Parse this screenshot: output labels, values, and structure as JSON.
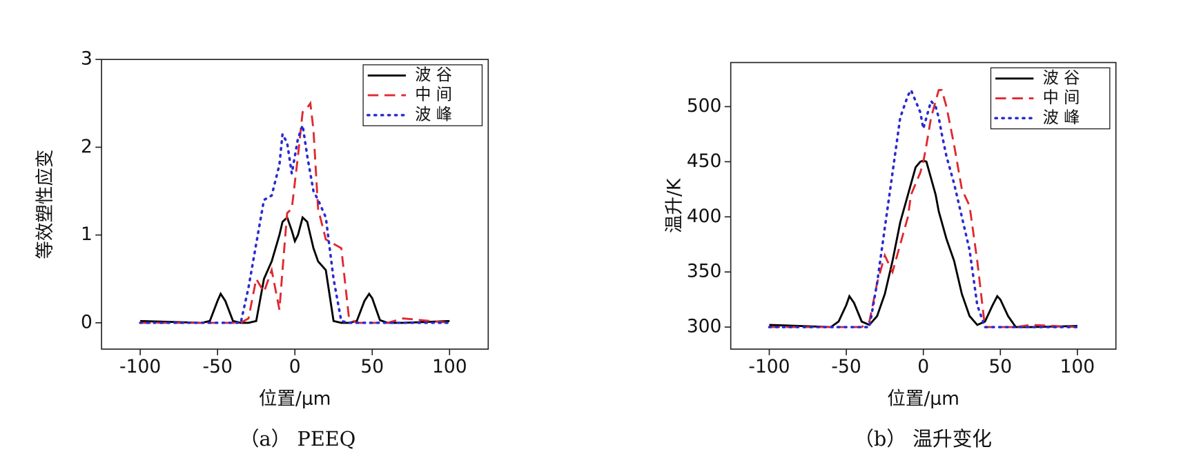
{
  "chart_data": [
    {
      "type": "line",
      "caption": "（a） PEEQ",
      "xlabel": "位置/μm",
      "ylabel": "等效塑性应变",
      "x": [
        -100,
        -60,
        -55,
        -50,
        -48,
        -45,
        -40,
        -35,
        -30,
        -25,
        -20,
        -15,
        -10,
        -8,
        -5,
        -2,
        0,
        2,
        5,
        8,
        10,
        12,
        15,
        20,
        25,
        30,
        35,
        40,
        45,
        48,
        50,
        55,
        60,
        70,
        100
      ],
      "xlim": [
        -125,
        125
      ],
      "xticks": [
        -100,
        -50,
        0,
        50,
        100
      ],
      "ylim": [
        -0.3,
        3
      ],
      "yticks": [
        0,
        1,
        2,
        3
      ],
      "legend": "upper right",
      "series": [
        {
          "name": "波 谷",
          "color": "#000000",
          "dash": "solid",
          "values": [
            0.02,
            0,
            0.02,
            0.25,
            0.33,
            0.25,
            0.02,
            0,
            0,
            0.02,
            0.5,
            0.7,
            1.0,
            1.15,
            1.2,
            1.05,
            0.93,
            1.0,
            1.2,
            1.15,
            1.0,
            0.85,
            0.7,
            0.6,
            0.02,
            0,
            0,
            0.02,
            0.25,
            0.33,
            0.28,
            0.03,
            0,
            0,
            0.02
          ]
        },
        {
          "name": "中 间",
          "color": "#e0282e",
          "dash": "dashed",
          "values": [
            0,
            0,
            0,
            0,
            0,
            0,
            0,
            0,
            0.05,
            0.5,
            0.35,
            0.6,
            0.15,
            0.6,
            1.25,
            1.3,
            1.6,
            1.9,
            2.4,
            2.45,
            2.5,
            2.2,
            1.3,
            0.95,
            0.9,
            0.85,
            0.05,
            0,
            0,
            0,
            0,
            0,
            0,
            0.05,
            0
          ]
        },
        {
          "name": "波 峰",
          "color": "#2a2ad0",
          "dash": "dotted",
          "values": [
            0,
            0,
            0,
            0,
            0,
            0,
            0,
            0,
            0.4,
            0.9,
            1.4,
            1.45,
            1.8,
            2.15,
            2.05,
            1.7,
            1.9,
            2.1,
            2.25,
            1.9,
            1.7,
            1.5,
            1.4,
            1.2,
            0.5,
            0.02,
            0,
            0,
            0,
            0,
            0,
            0,
            0,
            0,
            0
          ]
        }
      ]
    },
    {
      "type": "line",
      "caption": "（b） 温升变化",
      "xlabel": "位置/μm",
      "ylabel": "温升/K",
      "x": [
        -100,
        -60,
        -55,
        -50,
        -48,
        -45,
        -40,
        -35,
        -30,
        -25,
        -20,
        -15,
        -10,
        -8,
        -5,
        -2,
        0,
        2,
        5,
        8,
        10,
        12,
        15,
        20,
        25,
        30,
        35,
        40,
        45,
        48,
        50,
        55,
        60,
        70,
        100
      ],
      "xlim": [
        -125,
        125
      ],
      "xticks": [
        -100,
        -50,
        0,
        50,
        100
      ],
      "ylim": [
        280,
        540
      ],
      "yticks": [
        300,
        350,
        400,
        450,
        500
      ],
      "legend": "upper right",
      "series": [
        {
          "name": "波 谷",
          "color": "#000000",
          "dash": "solid",
          "values": [
            302,
            300,
            305,
            320,
            328,
            322,
            305,
            302,
            310,
            330,
            360,
            395,
            420,
            430,
            445,
            450,
            451,
            450,
            435,
            420,
            405,
            395,
            380,
            360,
            330,
            310,
            302,
            305,
            320,
            328,
            325,
            310,
            300,
            300,
            301
          ]
        },
        {
          "name": "中 间",
          "color": "#e0282e",
          "dash": "dashed",
          "values": [
            300,
            300,
            300,
            300,
            300,
            300,
            300,
            305,
            340,
            365,
            350,
            375,
            400,
            420,
            430,
            440,
            450,
            465,
            490,
            505,
            515,
            515,
            500,
            465,
            425,
            410,
            360,
            300,
            300,
            300,
            300,
            300,
            300,
            302,
            300
          ]
        },
        {
          "name": "波 峰",
          "color": "#2a2ad0",
          "dash": "dotted",
          "values": [
            300,
            300,
            300,
            300,
            300,
            300,
            300,
            300,
            340,
            390,
            440,
            490,
            510,
            515,
            505,
            495,
            480,
            490,
            505,
            500,
            490,
            475,
            455,
            430,
            400,
            370,
            320,
            300,
            300,
            300,
            300,
            300,
            300,
            300,
            300
          ]
        }
      ]
    }
  ]
}
